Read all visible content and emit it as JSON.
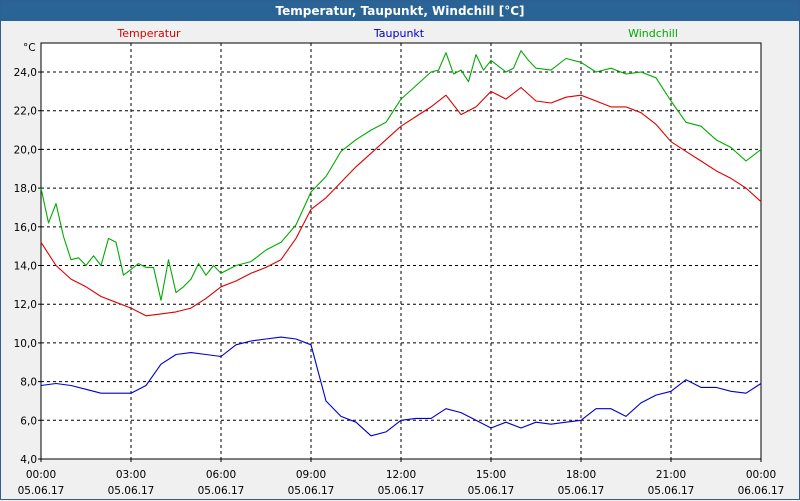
{
  "window": {
    "title": "Temperatur, Taupunkt, Windchill [°C]"
  },
  "colors": {
    "temperatur": "#dd0000",
    "taupunkt": "#0000cc",
    "windchill": "#00aa00"
  },
  "chart_data": {
    "type": "line",
    "title": "Temperatur, Taupunkt, Windchill [°C]",
    "ylabel": "°C",
    "ylim": [
      4.0,
      25.5
    ],
    "xlim": [
      0,
      24
    ],
    "y_ticks": [
      "4,0",
      "6,0",
      "8,0",
      "10,0",
      "12,0",
      "14,0",
      "16,0",
      "18,0",
      "20,0",
      "22,0",
      "24,0"
    ],
    "x_ticks": [
      {
        "time": "00:00",
        "date": "05.06.17"
      },
      {
        "time": "03:00",
        "date": "05.06.17"
      },
      {
        "time": "06:00",
        "date": "05.06.17"
      },
      {
        "time": "09:00",
        "date": "05.06.17"
      },
      {
        "time": "12:00",
        "date": "05.06.17"
      },
      {
        "time": "15:00",
        "date": "05.06.17"
      },
      {
        "time": "18:00",
        "date": "05.06.17"
      },
      {
        "time": "21:00",
        "date": "05.06.17"
      },
      {
        "time": "00:00",
        "date": "06.06.17"
      }
    ],
    "series": [
      {
        "name": "Temperatur",
        "color": "#dd0000",
        "x": [
          0,
          0.5,
          1,
          1.5,
          2,
          2.5,
          3,
          3.5,
          4,
          4.5,
          5,
          5.5,
          6,
          6.5,
          7,
          7.5,
          8,
          8.5,
          9,
          9.5,
          10,
          10.5,
          11,
          11.5,
          12,
          12.5,
          13,
          13.5,
          14,
          14.5,
          15,
          15.5,
          16,
          16.5,
          17,
          17.5,
          18,
          18.5,
          19,
          19.5,
          20,
          20.5,
          21,
          21.5,
          22,
          22.5,
          23,
          23.5,
          24
        ],
        "values": [
          15.2,
          14.0,
          13.3,
          12.9,
          12.4,
          12.1,
          11.8,
          11.4,
          11.5,
          11.6,
          11.8,
          12.3,
          12.9,
          13.2,
          13.6,
          13.9,
          14.3,
          15.4,
          16.9,
          17.5,
          18.3,
          19.1,
          19.8,
          20.5,
          21.2,
          21.7,
          22.2,
          22.8,
          21.8,
          22.2,
          23.0,
          22.6,
          23.2,
          22.5,
          22.4,
          22.7,
          22.8,
          22.5,
          22.2,
          22.2,
          21.9,
          21.3,
          20.4,
          19.9,
          19.4,
          18.9,
          18.5,
          18.0,
          17.3
        ]
      },
      {
        "name": "Taupunkt",
        "color": "#0000cc",
        "x": [
          0,
          0.5,
          1,
          1.5,
          2,
          2.5,
          3,
          3.5,
          4,
          4.5,
          5,
          5.5,
          6,
          6.5,
          7,
          7.5,
          8,
          8.5,
          9,
          9.5,
          10,
          10.5,
          11,
          11.5,
          12,
          12.5,
          13,
          13.5,
          14,
          14.5,
          15,
          15.5,
          16,
          16.5,
          17,
          17.5,
          18,
          18.5,
          19,
          19.5,
          20,
          20.5,
          21,
          21.5,
          22,
          22.5,
          23,
          23.5,
          24
        ],
        "values": [
          7.8,
          7.9,
          7.8,
          7.6,
          7.4,
          7.4,
          7.4,
          7.8,
          8.9,
          9.4,
          9.5,
          9.4,
          9.3,
          9.9,
          10.1,
          10.2,
          10.3,
          10.2,
          9.9,
          7.0,
          6.2,
          5.9,
          5.2,
          5.4,
          6.0,
          6.1,
          6.1,
          6.6,
          6.4,
          6.0,
          5.6,
          5.9,
          5.6,
          5.9,
          5.8,
          5.9,
          6.0,
          6.6,
          6.6,
          6.2,
          6.9,
          7.3,
          7.5,
          8.1,
          7.7,
          7.7,
          7.5,
          7.4,
          7.9
        ]
      },
      {
        "name": "Windchill",
        "color": "#00aa00",
        "x": [
          0,
          0.25,
          0.5,
          0.75,
          1,
          1.25,
          1.5,
          1.75,
          2,
          2.25,
          2.5,
          2.75,
          3,
          3.25,
          3.5,
          3.75,
          4,
          4.25,
          4.5,
          4.75,
          5,
          5.25,
          5.5,
          5.75,
          6,
          6.5,
          7,
          7.5,
          8,
          8.5,
          9,
          9.5,
          10,
          10.5,
          11,
          11.5,
          12,
          12.5,
          13,
          13.25,
          13.5,
          13.75,
          14,
          14.25,
          14.5,
          14.75,
          15,
          15.25,
          15.5,
          15.75,
          16,
          16.25,
          16.5,
          17,
          17.5,
          18,
          18.5,
          19,
          19.5,
          20,
          20.5,
          21,
          21.5,
          22,
          22.5,
          23,
          23.5,
          24
        ],
        "values": [
          18.0,
          16.2,
          17.2,
          15.5,
          14.3,
          14.4,
          14.0,
          14.5,
          14.0,
          15.4,
          15.2,
          13.5,
          13.8,
          14.1,
          13.9,
          13.9,
          12.2,
          14.3,
          12.6,
          12.9,
          13.3,
          14.1,
          13.5,
          14.0,
          13.6,
          14.0,
          14.2,
          14.8,
          15.2,
          16.1,
          17.8,
          18.6,
          19.9,
          20.5,
          21.0,
          21.4,
          22.6,
          23.3,
          24.0,
          24.1,
          25.0,
          23.9,
          24.1,
          23.5,
          24.9,
          24.1,
          24.6,
          24.3,
          24.0,
          24.2,
          25.1,
          24.6,
          24.2,
          24.1,
          24.7,
          24.5,
          24.0,
          24.2,
          23.9,
          24.0,
          23.7,
          22.5,
          21.4,
          21.2,
          20.5,
          20.1,
          19.4,
          20.0
        ]
      }
    ]
  }
}
